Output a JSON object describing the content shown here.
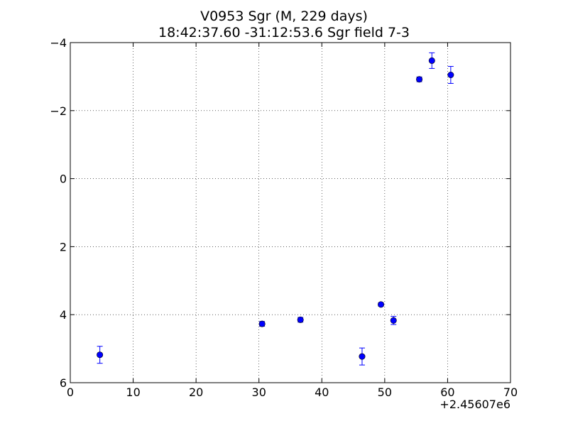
{
  "chart_data": {
    "type": "scatter",
    "title": "V0953 Sgr  (M, 229 days)",
    "subtitle": "18:42:37.60 -31:12:53.6 Sgr field 7-3",
    "xlabel": "",
    "ylabel": "",
    "x_offset_label": "+2.45607e6",
    "xlim": [
      0,
      70
    ],
    "ylim": [
      6,
      -4
    ],
    "y_inverted": true,
    "grid": true,
    "x_ticks": [
      "0",
      "10",
      "20",
      "30",
      "40",
      "50",
      "60",
      "70"
    ],
    "y_ticks": [
      "−4",
      "−2",
      "0",
      "2",
      "4",
      "6"
    ],
    "marker_color": "#0000ff",
    "errorbar_color": "#0000ff",
    "points": [
      {
        "x": 4.7,
        "y": 5.18,
        "err": 0.25
      },
      {
        "x": 30.5,
        "y": 4.27,
        "err": 0.07
      },
      {
        "x": 36.6,
        "y": 4.15,
        "err": 0.07
      },
      {
        "x": 46.4,
        "y": 5.23,
        "err": 0.25
      },
      {
        "x": 49.4,
        "y": 3.7,
        "err": 0.05
      },
      {
        "x": 51.4,
        "y": 4.17,
        "err": 0.12
      },
      {
        "x": 55.5,
        "y": -2.92,
        "err": 0.07
      },
      {
        "x": 57.5,
        "y": -3.47,
        "err": 0.23
      },
      {
        "x": 60.5,
        "y": -3.05,
        "err": 0.25
      }
    ]
  }
}
